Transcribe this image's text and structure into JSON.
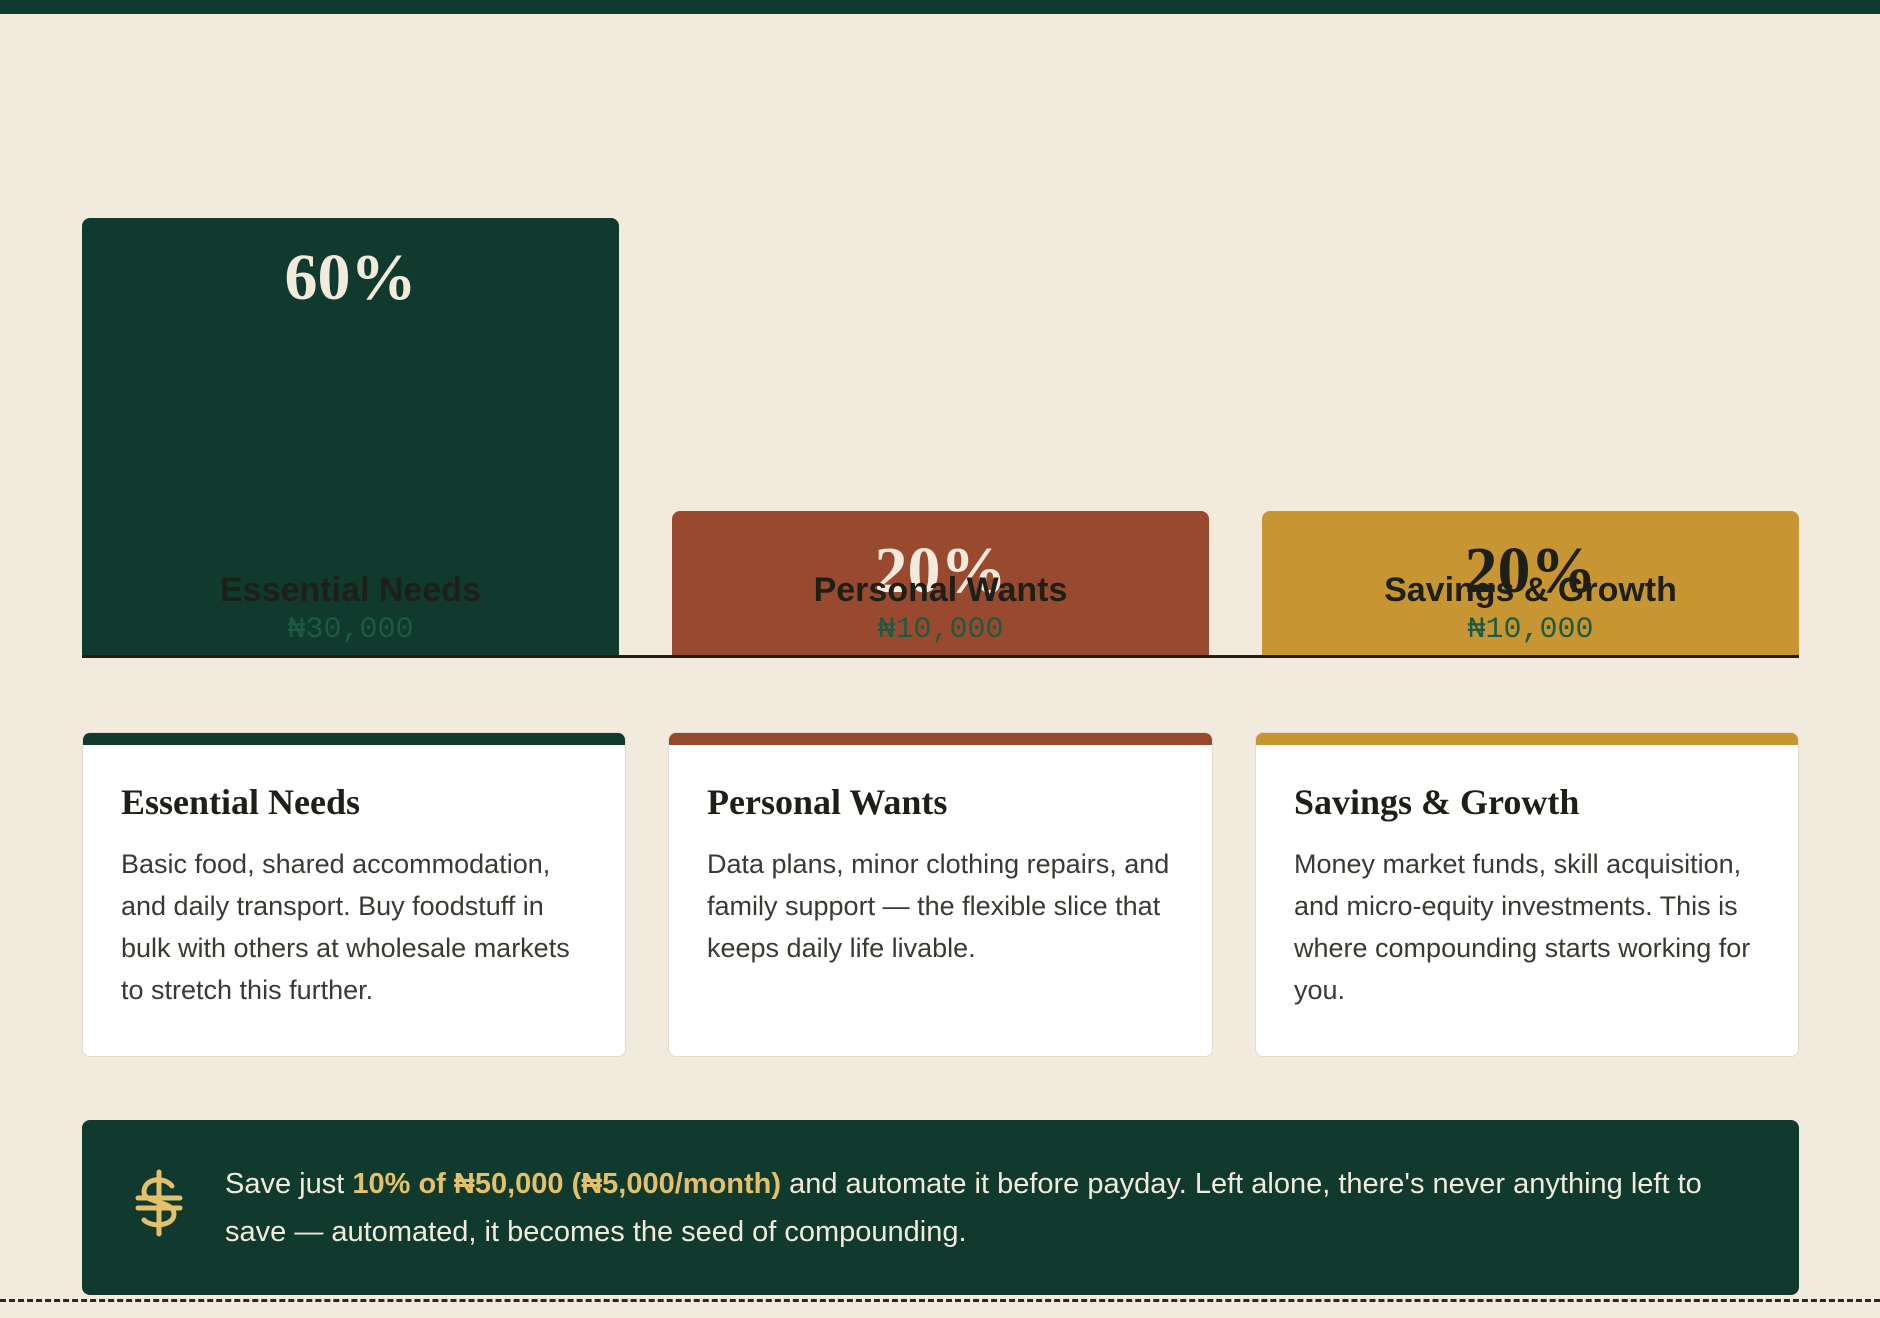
{
  "colors": {
    "needs": "#0f3a2d",
    "wants": "#994a2e",
    "savings": "#c79632",
    "background": "#f2ebdd",
    "highlight": "#e4c06b"
  },
  "chart_data": {
    "type": "bar",
    "categories": [
      "Essential Needs",
      "Personal Wants",
      "Savings & Growth"
    ],
    "values": [
      60,
      20,
      20
    ],
    "value_labels": [
      "60%",
      "20%",
      "20%"
    ],
    "amounts": [
      "₦30,000",
      "₦10,000",
      "₦10,000"
    ],
    "ylim": [
      0,
      60
    ],
    "grid": false
  },
  "cards": [
    {
      "title": "Essential Needs",
      "body": "Basic food, shared accommodation, and daily transport. Buy foodstuff in bulk with others at wholesale markets to stretch this further."
    },
    {
      "title": "Personal Wants",
      "body": "Data plans, minor clothing repairs, and family support — the flexible slice that keeps daily life livable."
    },
    {
      "title": "Savings & Growth",
      "body": "Money market funds, skill acquisition, and micro-equity investments. This is where compounding starts working for you."
    }
  ],
  "tip": {
    "icon": "naira-currency-icon",
    "prefix": "Save just ",
    "highlight": "10% of ₦50,000 (₦5,000/month)",
    "suffix": " and automate it before payday. Left alone, there's never anything left to save — automated, it becomes the seed of compounding."
  }
}
